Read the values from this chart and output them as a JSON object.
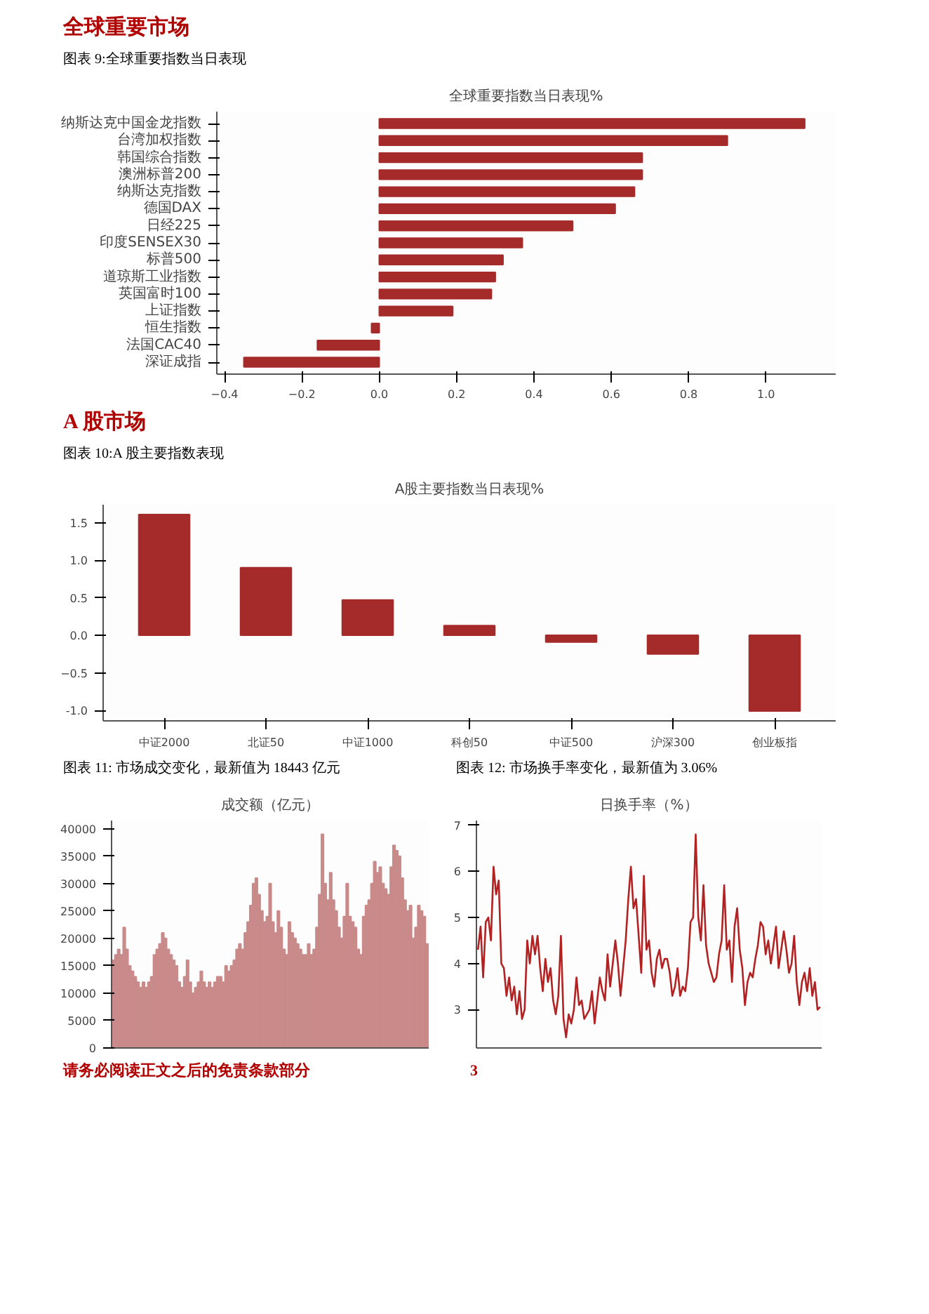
{
  "chart_data": [
    {
      "type": "bar",
      "orientation": "horizontal",
      "title": "全球重要指数当日表现%",
      "annotations": [
        "全球重要市场",
        "图表 9:全球重要指数当日表现"
      ],
      "categories": [
        "纳斯达克中国金龙指数",
        "台湾加权指数",
        "韩国综合指数",
        "澳洲标普200",
        "纳斯达克指数",
        "德国DAX",
        "日经225",
        "印度SENSEX30",
        "标普500",
        "道琼斯工业指数",
        "英国富时100",
        "上证指数",
        "恒生指数",
        "法国CAC40",
        "深证成指"
      ],
      "values": [
        1.1,
        0.9,
        0.68,
        0.68,
        0.66,
        0.61,
        0.5,
        0.37,
        0.32,
        0.3,
        0.29,
        0.19,
        -0.02,
        -0.16,
        -0.35
      ],
      "color": "#a52a2a",
      "xlim": [
        -0.42,
        1.18
      ],
      "xticks": [
        -0.4,
        -0.2,
        {
          "value": 0,
          "label": "0.0"
        },
        0.2,
        0.4,
        0.6,
        0.8,
        {
          "value": 1,
          "label": "1.0"
        }
      ]
    },
    {
      "type": "bar",
      "title": "A股主要指数当日表现%",
      "annotations": [
        "A 股市场",
        "图表 10:A 股主要指数表现"
      ],
      "categories": [
        "中证2000",
        "北证50",
        "中证1000",
        "科创50",
        "中证500",
        "沪深300",
        "创业板指"
      ],
      "values": [
        1.61,
        0.9,
        0.47,
        0.13,
        -0.09,
        -0.25,
        -1.01
      ],
      "color": "#a52a2a",
      "ylim": [
        -1.14,
        1.74
      ],
      "yticks": [
        {
          "value": -1,
          "label": "-1.0"
        },
        -0.5,
        {
          "value": 0,
          "label": "0.0"
        },
        0.5,
        {
          "value": 1,
          "label": "1.0"
        },
        1.5
      ]
    },
    {
      "type": "bar",
      "title": "成交额（亿元）",
      "annotations": [
        "图表 11: 市场成交变化，最新值为 18443 亿元"
      ],
      "tick_labels": "y",
      "categories": [
        null,
        null,
        null,
        null,
        null,
        null,
        null,
        null,
        null,
        null,
        null,
        null,
        null,
        null,
        null,
        null,
        null,
        null,
        null,
        null,
        null,
        null,
        null,
        null,
        null,
        null,
        null,
        null,
        null,
        null,
        null,
        null,
        null,
        null,
        null,
        null,
        null,
        null,
        null,
        null,
        null,
        null,
        null,
        null,
        null,
        null,
        null,
        null,
        null,
        null,
        null,
        null,
        null,
        null,
        null,
        null,
        null,
        null,
        null,
        null,
        null,
        null,
        null,
        null,
        null,
        null,
        null,
        null,
        null,
        null,
        null,
        null,
        null,
        null,
        null,
        null,
        null,
        null,
        null,
        null,
        null,
        null,
        null,
        null,
        null,
        null,
        null,
        null,
        null,
        null,
        null,
        null,
        null,
        null,
        null,
        null,
        null,
        null,
        null,
        null,
        null,
        null,
        null,
        null,
        null,
        null,
        null,
        null,
        null,
        null,
        null,
        null,
        null,
        null,
        null
      ],
      "values": [
        16000,
        17000,
        18000,
        17000,
        22000,
        18000,
        15000,
        14000,
        13000,
        12000,
        11000,
        12000,
        11000,
        12000,
        13000,
        17000,
        18000,
        19000,
        21000,
        20000,
        18000,
        17000,
        16000,
        15000,
        12000,
        11000,
        13000,
        16000,
        12000,
        10000,
        11000,
        12000,
        14000,
        12000,
        11000,
        12000,
        11000,
        12000,
        13000,
        13000,
        12000,
        15000,
        14000,
        15000,
        16000,
        18000,
        19000,
        18000,
        21000,
        23000,
        26000,
        30000,
        31000,
        28000,
        25000,
        23000,
        24000,
        30000,
        23000,
        21000,
        25000,
        22000,
        18000,
        17000,
        23000,
        21000,
        20000,
        19000,
        18000,
        17000,
        17000,
        19000,
        17000,
        18000,
        22000,
        28000,
        39000,
        30000,
        27000,
        32000,
        27000,
        25000,
        22000,
        20000,
        24000,
        30000,
        24000,
        23000,
        22000,
        18000,
        17000,
        24000,
        26000,
        27000,
        30000,
        34000,
        32000,
        33000,
        30000,
        29000,
        28000,
        33000,
        37000,
        36000,
        35000,
        31000,
        27000,
        25000,
        26000,
        20000,
        22000,
        26000,
        25000,
        24000,
        19000
      ],
      "color": "#c98a8a",
      "ylim": [
        0,
        41500
      ],
      "yticks": [
        0,
        5000,
        10000,
        15000,
        20000,
        25000,
        30000,
        35000,
        40000
      ]
    },
    {
      "type": "line",
      "title": "日换手率（%）",
      "annotations": [
        "图表 12: 市场换手率变化，最新值为 3.06%",
        "请务必阅读正文之后的免责条款部分",
        "3"
      ],
      "tick_labels": "y",
      "categories": [
        null,
        null,
        null,
        null,
        null,
        null,
        null,
        null,
        null,
        null,
        null,
        null,
        null,
        null,
        null,
        null,
        null,
        null,
        null,
        null,
        null,
        null,
        null,
        null,
        null,
        null,
        null,
        null,
        null,
        null,
        null,
        null,
        null,
        null,
        null,
        null,
        null,
        null,
        null,
        null,
        null,
        null,
        null,
        null,
        null,
        null,
        null,
        null,
        null,
        null,
        null,
        null,
        null,
        null,
        null,
        null,
        null,
        null,
        null,
        null,
        null,
        null,
        null,
        null,
        null,
        null,
        null,
        null,
        null,
        null,
        null,
        null,
        null,
        null,
        null,
        null,
        null,
        null,
        null,
        null,
        null,
        null,
        null,
        null,
        null,
        null,
        null,
        null,
        null,
        null,
        null,
        null,
        null,
        null,
        null,
        null,
        null,
        null,
        null,
        null,
        null,
        null,
        null,
        null,
        null,
        null,
        null,
        null,
        null,
        null,
        null,
        null,
        null,
        null,
        null,
        null,
        null,
        null,
        null,
        null,
        null,
        null,
        null,
        null,
        null,
        null,
        null,
        null,
        null,
        null,
        null,
        null,
        null
      ],
      "values": [
        4.3,
        4.8,
        3.7,
        4.9,
        5.0,
        4.5,
        6.1,
        5.5,
        5.8,
        4.0,
        3.9,
        3.3,
        3.7,
        3.2,
        3.5,
        2.9,
        3.4,
        2.8,
        3.0,
        4.5,
        4.0,
        4.6,
        4.2,
        4.6,
        3.9,
        3.4,
        4.1,
        3.6,
        3.9,
        3.2,
        2.9,
        3.3,
        4.6,
        2.8,
        2.4,
        2.9,
        2.7,
        3.0,
        3.7,
        3.1,
        3.2,
        2.8,
        2.9,
        3.0,
        3.4,
        2.7,
        3.2,
        3.7,
        3.4,
        3.2,
        4.2,
        3.5,
        4.0,
        4.5,
        4.0,
        3.3,
        3.9,
        4.5,
        5.4,
        6.1,
        5.2,
        5.4,
        4.6,
        3.8,
        5.9,
        4.3,
        4.5,
        3.8,
        3.5,
        4.1,
        4.3,
        3.9,
        4.1,
        4.1,
        3.8,
        3.3,
        3.5,
        3.9,
        3.3,
        3.5,
        3.4,
        3.9,
        4.9,
        5.0,
        6.8,
        5.0,
        4.5,
        5.7,
        4.4,
        4.0,
        3.8,
        3.6,
        3.7,
        4.2,
        4.5,
        5.7,
        4.3,
        4.5,
        3.6,
        4.8,
        5.2,
        4.3,
        3.9,
        3.1,
        3.6,
        3.8,
        3.7,
        4.1,
        4.4,
        4.9,
        4.8,
        4.2,
        4.5,
        4.0,
        4.4,
        4.8,
        3.9,
        4.3,
        4.7,
        4.3,
        3.8,
        4.0,
        4.6,
        3.6,
        3.1,
        3.6,
        3.8,
        3.4,
        3.9,
        3.3,
        3.6,
        3.0,
        3.06
      ],
      "color": "#b22222",
      "ylim": [
        2.17,
        7.1
      ],
      "yticks": [
        3,
        4,
        5,
        6,
        7
      ]
    }
  ]
}
